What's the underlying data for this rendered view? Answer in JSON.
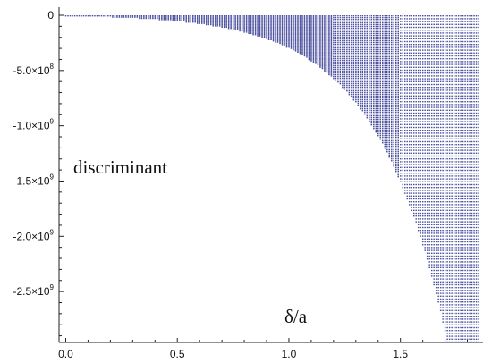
{
  "chart_data": {
    "type": "scatter",
    "title": "",
    "xlabel": "δ/a",
    "ylabel": "discriminant",
    "xlim": [
      -0.03,
      1.87
    ],
    "ylim": [
      -2960000000.0,
      0.0
    ],
    "x_ticks": [
      {
        "value": 0.0,
        "label": "0.0"
      },
      {
        "value": 0.5,
        "label": "0.5"
      },
      {
        "value": 1.0,
        "label": "1.0"
      },
      {
        "value": 1.5,
        "label": "1.5"
      }
    ],
    "y_ticks": [
      {
        "value": 0,
        "mantissa": "0",
        "exp": ""
      },
      {
        "value": -500000000.0,
        "mantissa": "-5.0×10",
        "exp": "8"
      },
      {
        "value": -1000000000.0,
        "mantissa": "-1.0×10",
        "exp": "9"
      },
      {
        "value": -1500000000.0,
        "mantissa": "-1.5×10",
        "exp": "9"
      },
      {
        "value": -2000000000.0,
        "mantissa": "-2.0×10",
        "exp": "9"
      },
      {
        "value": -2500000000.0,
        "mantissa": "-2.5×10",
        "exp": "9"
      }
    ],
    "series": [
      {
        "color": "#4a4f9e",
        "x_start": 0.0,
        "x_end": 1.85,
        "x_step": 0.01,
        "columns_per_x": 1,
        "description_formula": "envelope y_min(x) = -1.25e7*(exp(3.2*x)-1); per-column vertical point spacing in pixels decreases for large x"
      }
    ]
  }
}
